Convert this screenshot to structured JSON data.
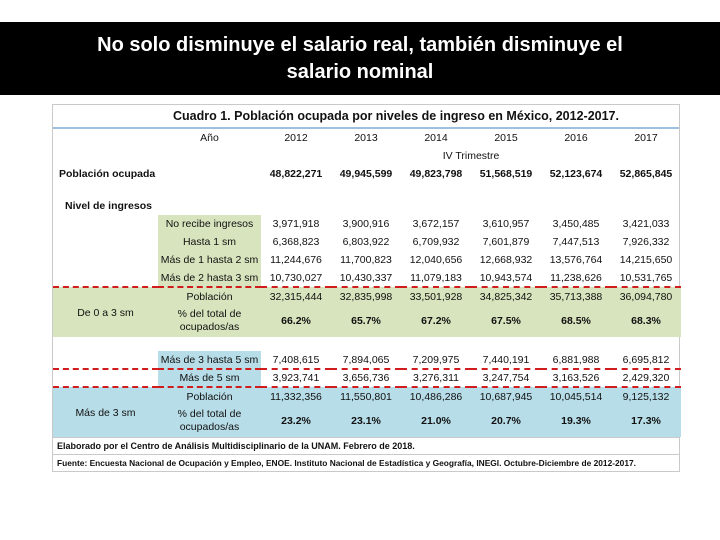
{
  "slide": {
    "title_line1": "No solo disminuye el salario real, también disminuye el",
    "title_line2": "salario nominal"
  },
  "cuadro": {
    "title": "Cuadro 1. Población ocupada por niveles de ingreso en México, 2012-2017.",
    "year_header": "Año",
    "years": [
      "2012",
      "2013",
      "2014",
      "2015",
      "2016",
      "2017"
    ],
    "quarter": "IV Trimestre",
    "poblacion_ocupada": {
      "label": "Población ocupada",
      "values": [
        "48,822,271",
        "49,945,599",
        "49,823,798",
        "51,568,519",
        "52,123,674",
        "52,865,845"
      ]
    },
    "nivel_label": "Nivel de ingresos",
    "income_rows": [
      {
        "label": "No recibe ingresos",
        "values": [
          "3,971,918",
          "3,900,916",
          "3,672,157",
          "3,610,957",
          "3,450,485",
          "3,421,033"
        ]
      },
      {
        "label": "Hasta 1 sm",
        "values": [
          "6,368,823",
          "6,803,922",
          "6,709,932",
          "7,601,879",
          "7,447,513",
          "7,926,332"
        ]
      },
      {
        "label": "Más de 1 hasta 2 sm",
        "values": [
          "11,244,676",
          "11,700,823",
          "12,040,656",
          "12,668,932",
          "13,576,764",
          "14,215,650"
        ]
      },
      {
        "label": "Más de 2 hasta 3 sm",
        "values": [
          "10,730,027",
          "10,430,337",
          "11,079,183",
          "10,943,574",
          "11,238,626",
          "10,531,765"
        ]
      }
    ],
    "group_0_3": {
      "label": "De 0 a 3 sm",
      "pop_label": "Población",
      "pop_values": [
        "32,315,444",
        "32,835,998",
        "33,501,928",
        "34,825,342",
        "35,713,388",
        "36,094,780"
      ],
      "pct_label_1": "% del total de",
      "pct_label_2": "ocupados/as",
      "pct_values": [
        "66.2%",
        "65.7%",
        "67.2%",
        "67.5%",
        "68.5%",
        "68.3%"
      ]
    },
    "income_rows_high": [
      {
        "label": "Más de 3 hasta 5 sm",
        "values": [
          "7,408,615",
          "7,894,065",
          "7,209,975",
          "7,440,191",
          "6,881,988",
          "6,695,812"
        ]
      },
      {
        "label": "Más de 5 sm",
        "values": [
          "3,923,741",
          "3,656,736",
          "3,276,311",
          "3,247,754",
          "3,163,526",
          "2,429,320"
        ]
      }
    ],
    "group_3_plus": {
      "label": "Más de 3 sm",
      "pop_label": "Población",
      "pop_values": [
        "11,332,356",
        "11,550,801",
        "10,486,286",
        "10,687,945",
        "10,045,514",
        "9,125,132"
      ],
      "pct_label_1": "% del total de",
      "pct_label_2": "ocupados/as",
      "pct_values": [
        "23.2%",
        "23.1%",
        "21.0%",
        "20.7%",
        "19.3%",
        "17.3%"
      ]
    },
    "footer_1": "Elaborado por el Centro de Análisis Multidisciplinario de la UNAM. Febrero de 2018.",
    "footer_2": "Fuente: Encuesta Nacional de Ocupación y Empleo, ENOE. Instituto Nacional de Estadística y Geografía, INEGI. Octubre-Diciembre de 2012-2017."
  },
  "colors": {
    "title_bg": "#000000",
    "green": "#d7e4bd",
    "blue": "#b7dde8",
    "dash_red": "#d01c1c"
  }
}
